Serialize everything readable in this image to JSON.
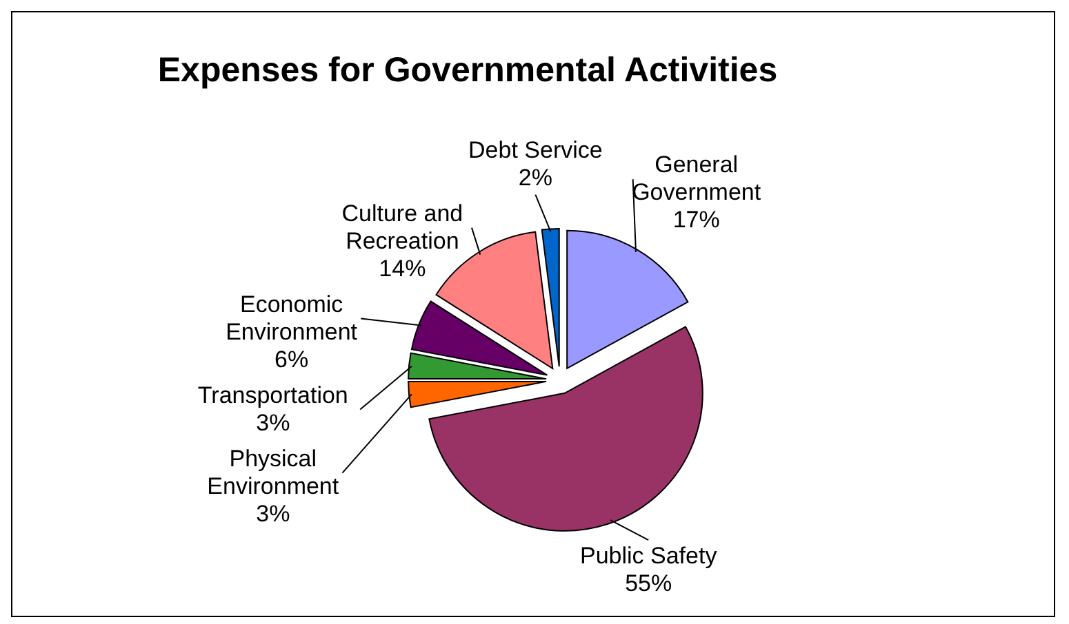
{
  "chart_data": {
    "type": "pie",
    "title": "Expenses for Governmental Activities",
    "categories": [
      "General Government",
      "Public Safety",
      "Physical Environment",
      "Transportation",
      "Economic Environment",
      "Culture and Recreation",
      "Debt Service"
    ],
    "values": [
      17,
      55,
      3,
      3,
      6,
      14,
      2
    ],
    "colors": [
      "#9999ff",
      "#993366",
      "#ff6600",
      "#339933",
      "#660066",
      "#ff8080",
      "#0066cc"
    ],
    "value_labels": [
      "17%",
      "55%",
      "3%",
      "3%",
      "6%",
      "14%",
      "2%"
    ]
  }
}
